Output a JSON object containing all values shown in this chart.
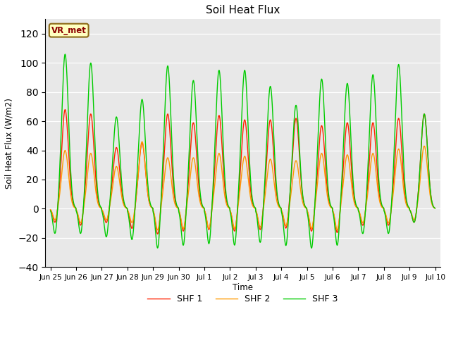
{
  "title": "Soil Heat Flux",
  "ylabel": "Soil Heat Flux (W/m2)",
  "xlabel": "Time",
  "ylim": [
    -40,
    130
  ],
  "yticks": [
    -40,
    -20,
    0,
    20,
    40,
    60,
    80,
    100,
    120
  ],
  "background_color": "#e8e8e8",
  "legend_labels": [
    "SHF 1",
    "SHF 2",
    "SHF 3"
  ],
  "legend_colors": [
    "#ff2200",
    "#ff9900",
    "#00cc00"
  ],
  "annotation_text": "VR_met",
  "n_days": 15,
  "points_per_day": 96,
  "shf1_peaks": [
    68,
    65,
    42,
    45,
    65,
    59,
    64,
    61,
    61,
    62,
    57,
    59,
    59,
    62,
    65
  ],
  "shf2_peaks": [
    40,
    38,
    29,
    46,
    35,
    35,
    38,
    36,
    34,
    33,
    38,
    37,
    38,
    41,
    43
  ],
  "shf3_peaks": [
    106,
    100,
    63,
    75,
    98,
    88,
    95,
    95,
    84,
    71,
    89,
    86,
    92,
    99,
    65
  ],
  "shf1_troughs": [
    -10,
    -12,
    -10,
    -14,
    -18,
    -16,
    -15,
    -16,
    -15,
    -14,
    -16,
    -17,
    -12,
    -12,
    -10
  ],
  "shf2_troughs": [
    -8,
    -10,
    -8,
    -10,
    -15,
    -14,
    -14,
    -14,
    -13,
    -12,
    -14,
    -15,
    -10,
    -10,
    -8
  ],
  "shf3_troughs": [
    -18,
    -18,
    -20,
    -22,
    -28,
    -26,
    -25,
    -26,
    -24,
    -26,
    -28,
    -26,
    -18,
    -18,
    -10
  ],
  "xtick_labels": [
    "Jun 25",
    "Jun 26",
    "Jun 27",
    "Jun 28",
    "Jun 29",
    "Jun 30",
    "Jul 1",
    "Jul 2",
    "Jul 3",
    "Jul 4",
    "Jul 5",
    "Jul 6",
    "Jul 7",
    "Jul 8",
    "Jul 9",
    "Jul 10"
  ]
}
